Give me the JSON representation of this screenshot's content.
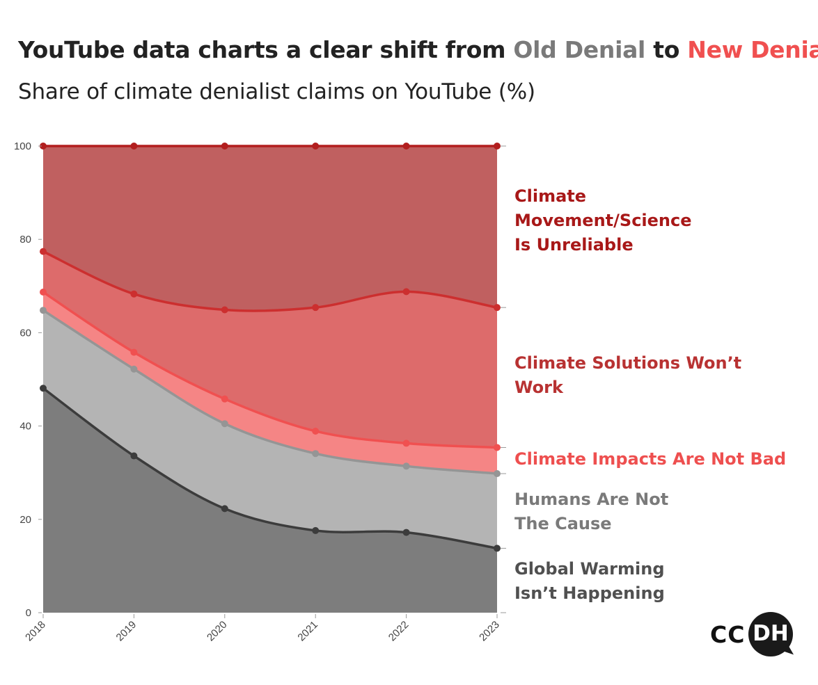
{
  "header": {
    "title_part1": "YouTube data charts a clear shift from ",
    "title_old": "Old Denial",
    "title_mid": " to ",
    "title_new": "New Denial",
    "subtitle": "Share of climate denialist claims on YouTube (%)"
  },
  "logo": {
    "left": "CC",
    "right": "DH"
  },
  "chart_data": {
    "type": "area",
    "stacked": true,
    "title": "YouTube data charts a clear shift from Old Denial to New Denial",
    "subtitle": "Share of climate denialist claims on YouTube (%)",
    "x": [
      "2018",
      "2019",
      "2020",
      "2021",
      "2022",
      "2023"
    ],
    "ylim": [
      0,
      100
    ],
    "yticks": [
      0,
      20,
      40,
      60,
      80,
      100
    ],
    "grid": false,
    "series": [
      {
        "name": "Global Warming Isn’t Happening",
        "label_lines": [
          "Global Warming",
          "Isn’t Happening"
        ],
        "cumulative": [
          48.1,
          33.6,
          22.3,
          17.6,
          17.2,
          13.8
        ],
        "fill": "#7d7d7d",
        "line": "#3c3c3c",
        "label_color": "#505050"
      },
      {
        "name": "Humans Are Not The Cause",
        "label_lines": [
          "Humans Are Not",
          "The Cause"
        ],
        "cumulative": [
          64.8,
          52.2,
          40.5,
          34.1,
          31.4,
          29.8
        ],
        "fill": "#b4b4b4",
        "line": "#959595",
        "label_color": "#7a7a7a"
      },
      {
        "name": "Climate Impacts Are Not Bad",
        "label_lines": [
          "Climate Impacts Are Not Bad"
        ],
        "cumulative": [
          68.7,
          55.8,
          45.8,
          38.9,
          36.3,
          35.4
        ],
        "fill": "#f58585",
        "line": "#f05050",
        "label_color": "#ee4f4f"
      },
      {
        "name": "Climate Solutions Won’t Work",
        "label_lines": [
          "Climate Solutions Won’t",
          "Work"
        ],
        "cumulative": [
          77.4,
          68.3,
          64.9,
          65.4,
          68.8,
          65.4
        ],
        "fill": "#dd6b6b",
        "line": "#cc2f2f",
        "label_color": "#b83232"
      },
      {
        "name": "Climate Movement/Science Is Unreliable",
        "label_lines": [
          "Climate",
          "Movement/Science",
          "Is Unreliable"
        ],
        "cumulative": [
          100,
          100,
          100,
          100,
          100,
          100
        ],
        "fill": "#c06060",
        "line": "#b21e1e",
        "label_color": "#a81818"
      }
    ]
  }
}
